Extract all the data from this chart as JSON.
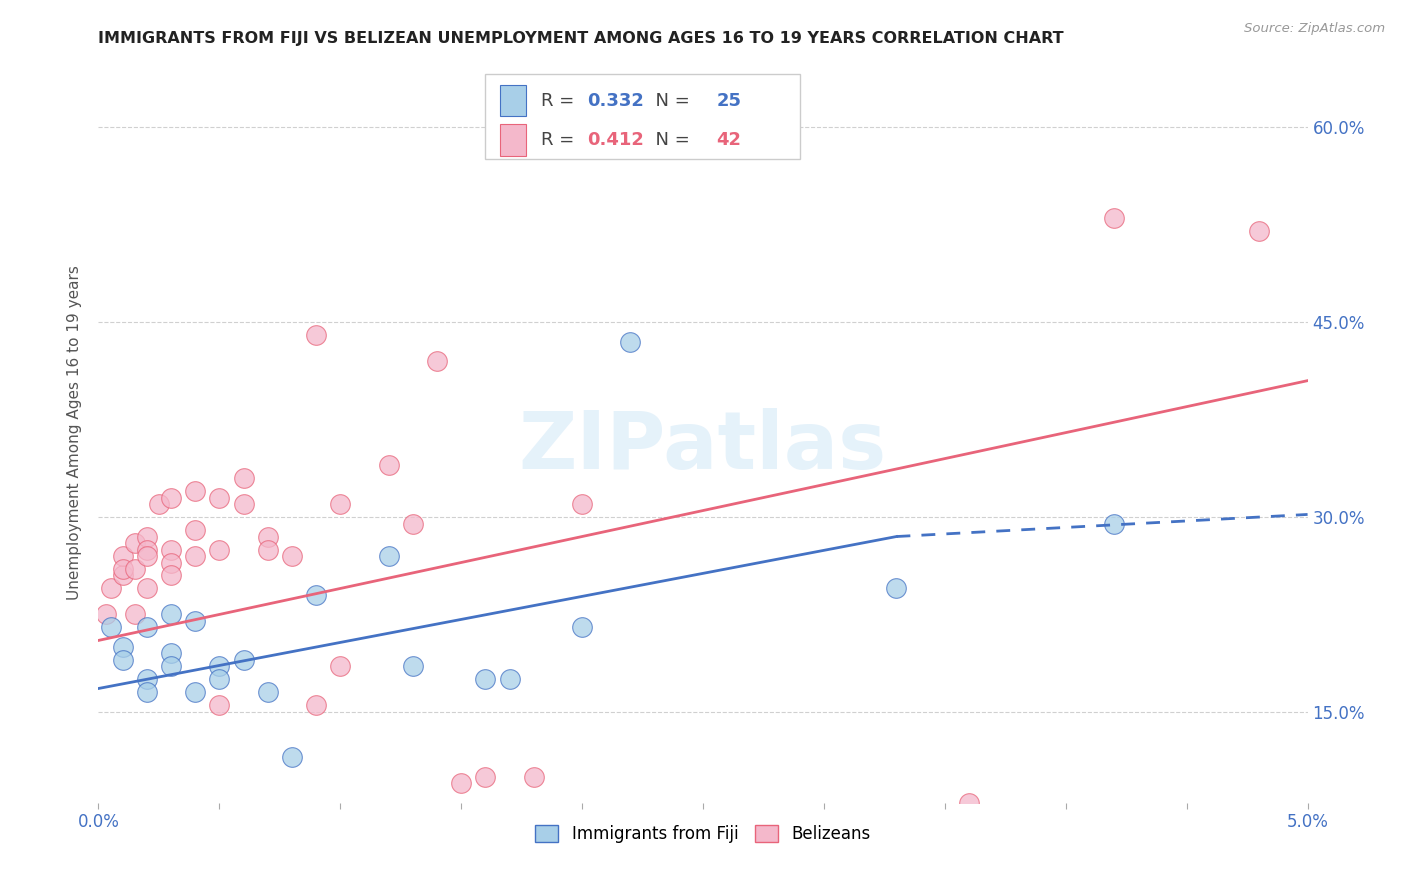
{
  "title": "IMMIGRANTS FROM FIJI VS BELIZEAN UNEMPLOYMENT AMONG AGES 16 TO 19 YEARS CORRELATION CHART",
  "source": "Source: ZipAtlas.com",
  "ylabel": "Unemployment Among Ages 16 to 19 years",
  "xlim": [
    0.0,
    0.05
  ],
  "ylim": [
    0.08,
    0.65
  ],
  "xticks_major": [
    0.0,
    0.005,
    0.01,
    0.015,
    0.02,
    0.025,
    0.03,
    0.035,
    0.04,
    0.045,
    0.05
  ],
  "xticks_labeled": [
    0.0,
    0.05
  ],
  "xticklabels": [
    "0.0%",
    "5.0%"
  ],
  "yticks_right": [
    0.15,
    0.3,
    0.45,
    0.6
  ],
  "yticklabels_right": [
    "15.0%",
    "30.0%",
    "45.0%",
    "60.0%"
  ],
  "fiji_color": "#a8cfe8",
  "fiji_color_line": "#4472c4",
  "belize_color": "#f4b8cb",
  "belize_color_line": "#e8647a",
  "fiji_R": "0.332",
  "fiji_N": "25",
  "belize_R": "0.412",
  "belize_N": "42",
  "fiji_scatter_x": [
    0.0005,
    0.001,
    0.001,
    0.002,
    0.002,
    0.002,
    0.003,
    0.003,
    0.003,
    0.004,
    0.004,
    0.005,
    0.005,
    0.006,
    0.007,
    0.008,
    0.009,
    0.012,
    0.013,
    0.016,
    0.017,
    0.02,
    0.022,
    0.033,
    0.042
  ],
  "fiji_scatter_y": [
    0.215,
    0.2,
    0.19,
    0.215,
    0.175,
    0.165,
    0.195,
    0.185,
    0.225,
    0.165,
    0.22,
    0.185,
    0.175,
    0.19,
    0.165,
    0.115,
    0.24,
    0.27,
    0.185,
    0.175,
    0.175,
    0.215,
    0.435,
    0.245,
    0.295
  ],
  "belize_scatter_x": [
    0.0003,
    0.0005,
    0.001,
    0.001,
    0.001,
    0.0015,
    0.0015,
    0.0015,
    0.002,
    0.002,
    0.002,
    0.002,
    0.0025,
    0.003,
    0.003,
    0.003,
    0.003,
    0.004,
    0.004,
    0.004,
    0.005,
    0.005,
    0.005,
    0.006,
    0.006,
    0.007,
    0.007,
    0.008,
    0.009,
    0.009,
    0.01,
    0.01,
    0.012,
    0.013,
    0.014,
    0.015,
    0.016,
    0.018,
    0.02,
    0.036,
    0.042,
    0.048
  ],
  "belize_scatter_y": [
    0.225,
    0.245,
    0.255,
    0.27,
    0.26,
    0.28,
    0.26,
    0.225,
    0.285,
    0.275,
    0.27,
    0.245,
    0.31,
    0.275,
    0.265,
    0.255,
    0.315,
    0.29,
    0.32,
    0.27,
    0.275,
    0.315,
    0.155,
    0.31,
    0.33,
    0.285,
    0.275,
    0.27,
    0.44,
    0.155,
    0.31,
    0.185,
    0.34,
    0.295,
    0.42,
    0.095,
    0.1,
    0.1,
    0.31,
    0.08,
    0.53,
    0.52
  ],
  "fiji_trend_x0": 0.0,
  "fiji_trend_x_split": 0.033,
  "fiji_trend_x1": 0.05,
  "fiji_trend_y0": 0.168,
  "fiji_trend_y_split": 0.285,
  "fiji_trend_y1": 0.302,
  "belize_trend_x0": 0.0,
  "belize_trend_x1": 0.05,
  "belize_trend_y0": 0.205,
  "belize_trend_y1": 0.405,
  "watermark": "ZIPatlas",
  "legend_fiji_label": "Immigrants from Fiji",
  "legend_belize_label": "Belizeans",
  "title_color": "#222222",
  "axis_label_color": "#555555",
  "tick_color": "#4472c4",
  "grid_color": "#d0d0d0",
  "background_color": "#ffffff"
}
